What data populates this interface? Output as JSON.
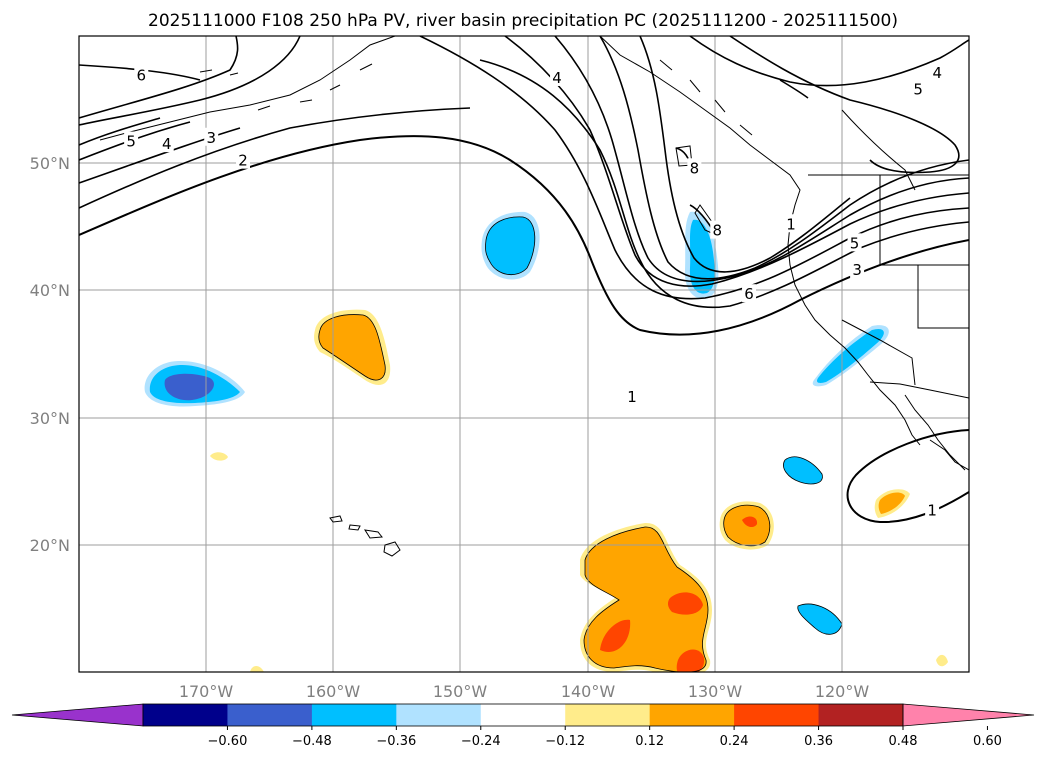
{
  "chart_data": {
    "type": "map",
    "title": "2025111000 F108 250 hPa PV, river basin precipitation PC (2025111200 - 2025111500)",
    "lon_range": [
      -180,
      -110
    ],
    "lat_range": [
      10,
      60
    ],
    "lon_ticks": [
      {
        "value": -170,
        "label": "170°W"
      },
      {
        "value": -160,
        "label": "160°W"
      },
      {
        "value": -150,
        "label": "150°W"
      },
      {
        "value": -140,
        "label": "140°W"
      },
      {
        "value": -130,
        "label": "130°W"
      },
      {
        "value": -120,
        "label": "120°W"
      }
    ],
    "lat_ticks": [
      {
        "value": 50,
        "label": "50°N"
      },
      {
        "value": 40,
        "label": "40°N"
      },
      {
        "value": 30,
        "label": "30°N"
      },
      {
        "value": 20,
        "label": "20°N"
      }
    ],
    "colorbar": {
      "extend": "both",
      "colors": [
        "#9932cc",
        "#00008b",
        "#3a5fcd",
        "#00bfff",
        "#b0e2ff",
        "#ffffff",
        "#ffec8b",
        "#ffa500",
        "#ff4500",
        "#b22222",
        "#ff82ab"
      ],
      "ticks": [
        "−0.60",
        "−0.48",
        "−0.36",
        "−0.24",
        "−0.12",
        "0.12",
        "0.24",
        "0.36",
        "0.48",
        "0.60"
      ]
    },
    "contour_labels": [
      {
        "text": "6",
        "lon": -175.1,
        "lat": 56.9
      },
      {
        "text": "5",
        "lon": -175.9,
        "lat": 51.7
      },
      {
        "text": "4",
        "lon": -173.1,
        "lat": 51.5
      },
      {
        "text": "3",
        "lon": -169.6,
        "lat": 52.0
      },
      {
        "text": "2",
        "lon": -167.1,
        "lat": 50.2
      },
      {
        "text": "4",
        "lon": -142.4,
        "lat": 56.7
      },
      {
        "text": "5",
        "lon": -114.0,
        "lat": 55.8
      },
      {
        "text": "4",
        "lon": -112.5,
        "lat": 57.1
      },
      {
        "text": "8",
        "lon": -131.6,
        "lat": 49.6
      },
      {
        "text": "8",
        "lon": -129.8,
        "lat": 44.7
      },
      {
        "text": "6",
        "lon": -127.3,
        "lat": 39.7
      },
      {
        "text": "5",
        "lon": -119.0,
        "lat": 43.7
      },
      {
        "text": "3",
        "lon": -118.8,
        "lat": 41.6
      },
      {
        "text": "1",
        "lon": -124.0,
        "lat": 45.2
      },
      {
        "text": "1",
        "lon": -136.5,
        "lat": 31.6
      },
      {
        "text": "1",
        "lon": -112.9,
        "lat": 22.7
      }
    ]
  }
}
